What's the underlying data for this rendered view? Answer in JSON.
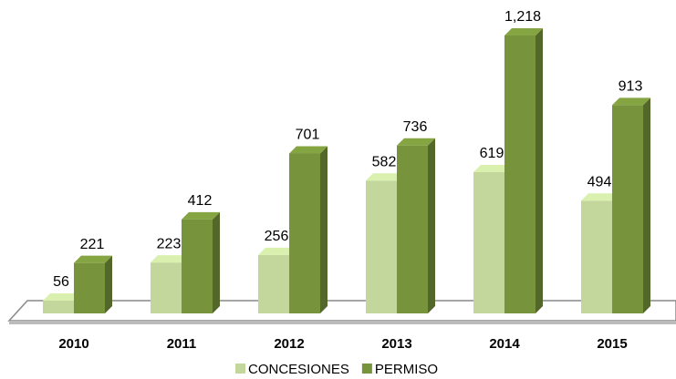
{
  "chart_data": {
    "type": "bar3d",
    "categories": [
      "2010",
      "2011",
      "2012",
      "2013",
      "2014",
      "2015"
    ],
    "series": [
      {
        "name": "CONCESIONES",
        "color": "#c3d69b",
        "values": [
          56,
          223,
          256,
          582,
          619,
          494
        ]
      },
      {
        "name": "PERMISO",
        "color": "#77933c",
        "values": [
          221,
          412,
          701,
          736,
          1218,
          913
        ],
        "value_labels": [
          "221",
          "412",
          "701",
          "736",
          "1,218",
          "913"
        ]
      }
    ]
  }
}
